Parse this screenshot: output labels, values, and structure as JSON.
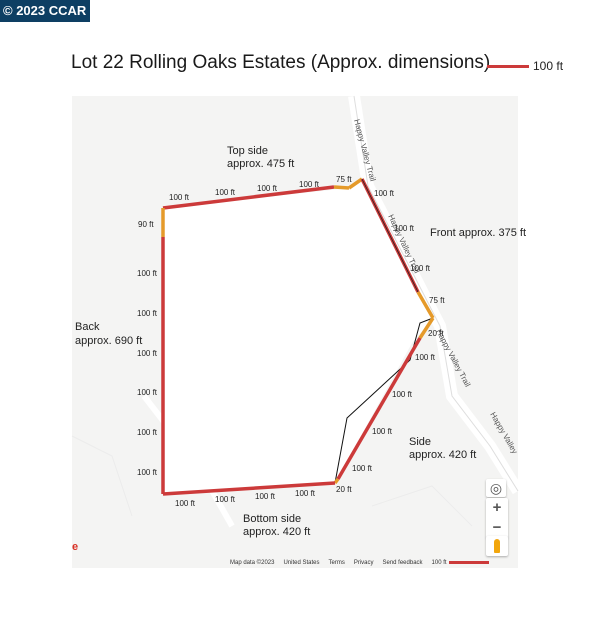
{
  "watermark": "© 2023 CCAR",
  "title": "Lot 22 Rolling Oaks Estates (Approx. dimensions)",
  "legend": {
    "label": "100 ft",
    "color": "#cc3a3a"
  },
  "side_labels": {
    "top": [
      "Top side",
      "approx. 475 ft"
    ],
    "front": "Front approx. 375 ft",
    "back": [
      "Back",
      "approx. 690 ft"
    ],
    "side": [
      "Side",
      "approx. 420 ft"
    ],
    "bottom": [
      "Bottom side",
      "approx. 420 ft"
    ]
  },
  "segment_labels": [
    "100 ft",
    "100 ft",
    "100 ft",
    "100 ft",
    "75 ft",
    "100 ft",
    "100 ft",
    "100 ft",
    "75 ft",
    "20 ft",
    "100 ft",
    "100 ft",
    "100 ft",
    "100 ft",
    "20 ft",
    "100 ft",
    "100 ft",
    "100 ft",
    "100 ft",
    "90 ft",
    "100 ft",
    "100 ft",
    "100 ft",
    "100 ft",
    "100 ft",
    "100 ft"
  ],
  "road_labels": [
    "Happy Valley Trail",
    "Happy Valley Trail",
    "Happy Valley Trail",
    "Happy Valley"
  ],
  "map_controls": {
    "zoom_in": "+",
    "zoom_out": "−",
    "locate_icon": "target-icon",
    "pegman_icon": "pegman-icon"
  },
  "google_logo": "e",
  "attribution": {
    "map_data": "Map data ©2023",
    "region": "United States",
    "terms": "Terms",
    "privacy": "Privacy",
    "feedback": "Send feedback",
    "scale": "100 ft"
  }
}
